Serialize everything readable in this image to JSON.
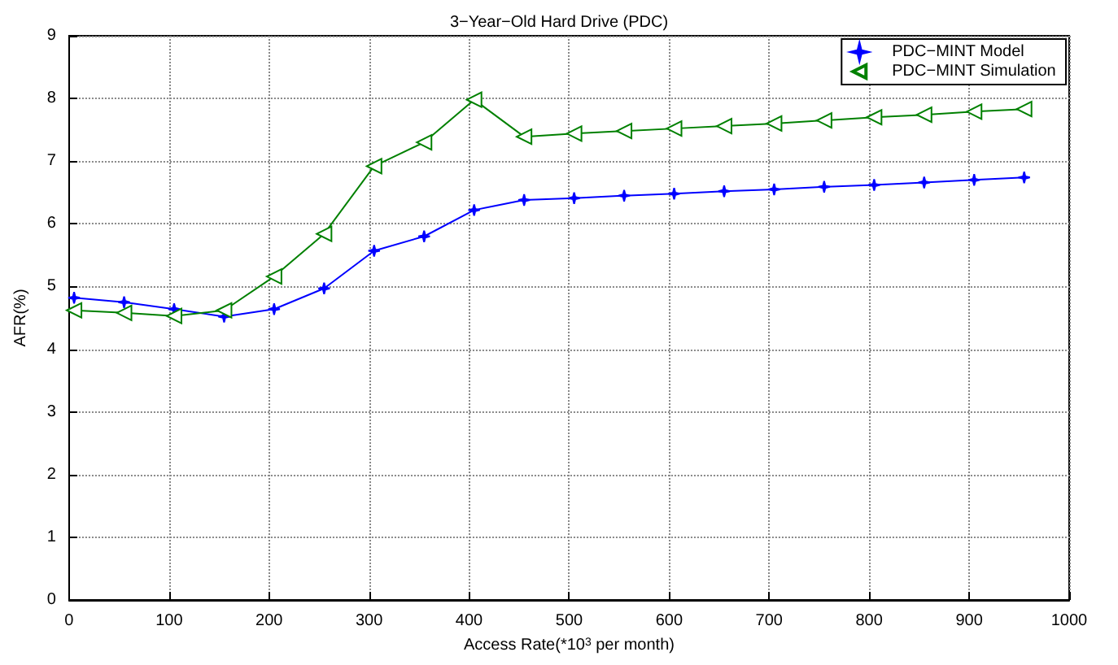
{
  "chart_data": {
    "type": "line",
    "title": "3−Year−Old Hard Drive (PDC)",
    "xlabel": "Access Rate(*10$^{3}$ per month)",
    "ylabel": "AFR(%)",
    "x": [
      5,
      55,
      105,
      155,
      205,
      255,
      305,
      355,
      405,
      455,
      505,
      555,
      605,
      655,
      705,
      755,
      805,
      855,
      905,
      955
    ],
    "series": [
      {
        "name": "PDC−MINT Model",
        "color": "#0000ff",
        "marker": "star",
        "values": [
          4.82,
          4.75,
          4.64,
          4.52,
          4.64,
          4.97,
          5.57,
          5.8,
          6.22,
          6.38,
          6.41,
          6.45,
          6.48,
          6.52,
          6.55,
          6.59,
          6.62,
          6.66,
          6.7,
          6.74
        ]
      },
      {
        "name": "PDC−MINT Simulation",
        "color": "#008000",
        "marker": "triangle",
        "values": [
          4.62,
          4.58,
          4.53,
          4.62,
          5.16,
          5.84,
          6.92,
          7.3,
          7.98,
          7.39,
          7.44,
          7.48,
          7.52,
          7.56,
          7.6,
          7.65,
          7.7,
          7.74,
          7.79,
          7.83
        ]
      }
    ],
    "xlim": [
      0,
      1000
    ],
    "xticks": [
      0,
      100,
      200,
      300,
      400,
      500,
      600,
      700,
      800,
      900,
      1000
    ],
    "ylim": [
      0,
      9
    ],
    "yticks": [
      0,
      1,
      2,
      3,
      4,
      5,
      6,
      7,
      8,
      9
    ],
    "grid": true,
    "legend": "top right",
    "line_style": "solid"
  }
}
